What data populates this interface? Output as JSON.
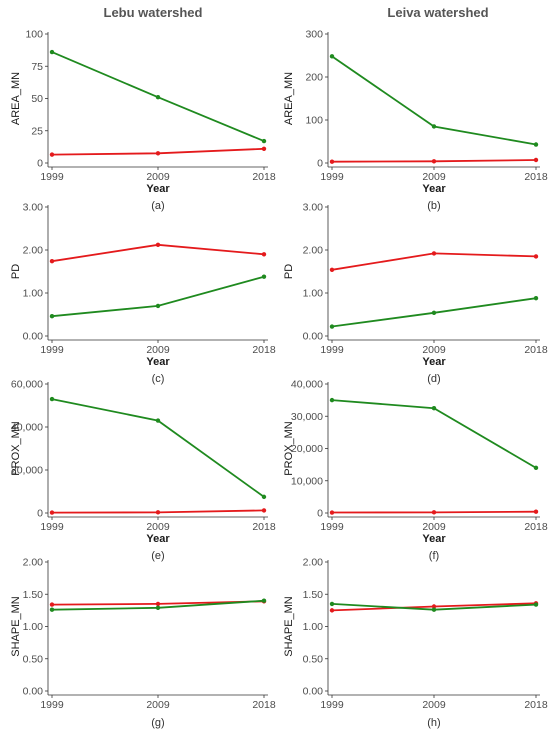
{
  "column_titles": [
    "Lebu watershed",
    "Leiva watershed"
  ],
  "colors": {
    "red_series": "#e41a1c",
    "green_series": "#1f8a1f"
  },
  "chart_data": [
    {
      "panel_label": "(a)",
      "type": "line",
      "xlabel": "Year",
      "ylabel": "AREA_MN",
      "categories": [
        "1999",
        "2009",
        "2018"
      ],
      "ylim": [
        0,
        100
      ],
      "yticks": [
        0,
        25,
        50,
        75,
        100
      ],
      "ytick_labels": [
        "0",
        "25",
        "50",
        "75",
        "100"
      ],
      "series": [
        {
          "color": "green",
          "values": [
            86,
            51,
            17
          ]
        },
        {
          "color": "red",
          "values": [
            6.5,
            7.5,
            11
          ]
        }
      ]
    },
    {
      "panel_label": "(b)",
      "type": "line",
      "xlabel": "Year",
      "ylabel": "AREA_MN",
      "categories": [
        "1999",
        "2009",
        "2018"
      ],
      "ylim": [
        0,
        300
      ],
      "yticks": [
        0,
        100,
        200,
        300
      ],
      "ytick_labels": [
        "0",
        "100",
        "200",
        "300"
      ],
      "series": [
        {
          "color": "green",
          "values": [
            248,
            85,
            43
          ]
        },
        {
          "color": "red",
          "values": [
            3,
            4,
            7
          ]
        }
      ]
    },
    {
      "panel_label": "(c)",
      "type": "line",
      "xlabel": "Year",
      "ylabel": "PD",
      "categories": [
        "1999",
        "2009",
        "2018"
      ],
      "ylim": [
        0,
        3
      ],
      "yticks": [
        0,
        1,
        2,
        3
      ],
      "ytick_labels": [
        "0.00",
        "1.00",
        "2.00",
        "3.00"
      ],
      "series": [
        {
          "color": "red",
          "values": [
            1.74,
            2.12,
            1.9
          ]
        },
        {
          "color": "green",
          "values": [
            0.46,
            0.7,
            1.38
          ]
        }
      ]
    },
    {
      "panel_label": "(d)",
      "type": "line",
      "xlabel": "Year",
      "ylabel": "PD",
      "categories": [
        "1999",
        "2009",
        "2018"
      ],
      "ylim": [
        0,
        3
      ],
      "yticks": [
        0,
        1,
        2,
        3
      ],
      "ytick_labels": [
        "0.00",
        "1.00",
        "2.00",
        "3.00"
      ],
      "series": [
        {
          "color": "red",
          "values": [
            1.54,
            1.92,
            1.85
          ]
        },
        {
          "color": "green",
          "values": [
            0.22,
            0.54,
            0.88
          ]
        }
      ]
    },
    {
      "panel_label": "(e)",
      "type": "line",
      "xlabel": "Year",
      "ylabel": "PROX_MN",
      "categories": [
        "1999",
        "2009",
        "2018"
      ],
      "ylim": [
        0,
        60000
      ],
      "yticks": [
        0,
        20000,
        40000,
        60000
      ],
      "ytick_labels": [
        "0",
        "20,000",
        "40,000",
        "60,000"
      ],
      "series": [
        {
          "color": "green",
          "values": [
            53000,
            43000,
            7500
          ]
        },
        {
          "color": "red",
          "values": [
            200,
            300,
            1200
          ]
        }
      ]
    },
    {
      "panel_label": "(f)",
      "type": "line",
      "xlabel": "Year",
      "ylabel": "PROX_MN",
      "categories": [
        "1999",
        "2009",
        "2018"
      ],
      "ylim": [
        0,
        40000
      ],
      "yticks": [
        0,
        10000,
        20000,
        30000,
        40000
      ],
      "ytick_labels": [
        "0",
        "10,000",
        "20,000",
        "30,000",
        "40,000"
      ],
      "series": [
        {
          "color": "green",
          "values": [
            35000,
            32500,
            14000
          ]
        },
        {
          "color": "red",
          "values": [
            150,
            200,
            400
          ]
        }
      ]
    },
    {
      "panel_label": "(g)",
      "type": "line",
      "xlabel": "",
      "ylabel": "SHAPE_MN",
      "categories": [
        "1999",
        "2009",
        "2018"
      ],
      "ylim": [
        0,
        2
      ],
      "yticks": [
        0,
        0.5,
        1,
        1.5,
        2
      ],
      "ytick_labels": [
        "0.00",
        "0.50",
        "1.00",
        "1.50",
        "2.00"
      ],
      "series": [
        {
          "color": "red",
          "values": [
            1.34,
            1.35,
            1.39
          ]
        },
        {
          "color": "green",
          "values": [
            1.26,
            1.29,
            1.4
          ]
        }
      ]
    },
    {
      "panel_label": "(h)",
      "type": "line",
      "xlabel": "",
      "ylabel": "SHAPE_MN",
      "categories": [
        "1999",
        "2009",
        "2018"
      ],
      "ylim": [
        0,
        2
      ],
      "yticks": [
        0,
        0.5,
        1,
        1.5,
        2
      ],
      "ytick_labels": [
        "0.00",
        "0.50",
        "1.00",
        "1.50",
        "2.00"
      ],
      "series": [
        {
          "color": "red",
          "values": [
            1.25,
            1.31,
            1.36
          ]
        },
        {
          "color": "green",
          "values": [
            1.35,
            1.26,
            1.34
          ]
        }
      ]
    }
  ]
}
